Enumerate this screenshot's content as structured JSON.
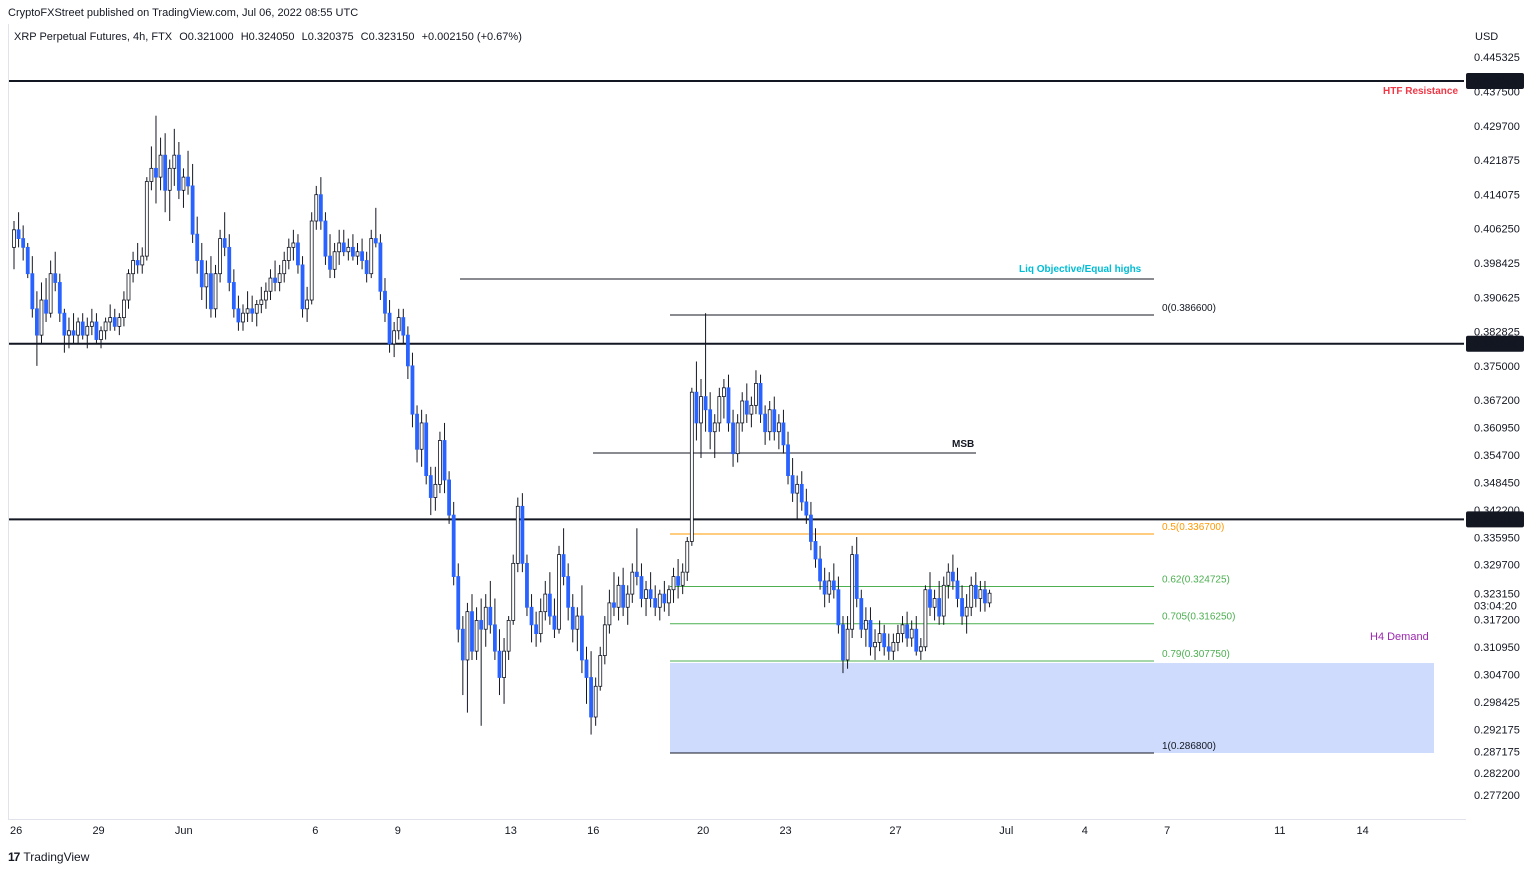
{
  "header": {
    "publisher": "CryptoFXStreet published on TradingView.com, Jul 06, 2022 08:55 UTC",
    "symbol": "XRP Perpetual Futures, 4h, FTX",
    "open": "O0.321000",
    "high": "H0.324050",
    "low": "L0.320375",
    "close": "C0.323150",
    "change": "+0.002150 (+0.67%)"
  },
  "currency": "USD",
  "footer": {
    "brand": "TradingView",
    "mark": "17"
  },
  "colors": {
    "up_candle": "#ffffff",
    "down_candle": "#2962ff",
    "candle_wick": "#131722",
    "resistance_label": "#f23645",
    "liq_label": "#00bcd4",
    "fib_05": "#ff9800",
    "fib_green": "#4caf50",
    "demand_fill": "#c5d5fb",
    "demand_label": "#9c27b0"
  },
  "chart_data": {
    "type": "candlestick",
    "title": "XRP Perpetual Futures, 4h, FTX",
    "ylabel": "USD",
    "ylim": [
      0.27,
      0.452
    ],
    "y_ticks": [
      "0.445325",
      "0.437500",
      "0.429700",
      "0.421875",
      "0.414075",
      "0.406250",
      "0.398425",
      "0.390625",
      "0.382825",
      "0.375000",
      "0.367200",
      "0.360950",
      "0.354700",
      "0.348450",
      "0.342200",
      "0.335950",
      "0.329700",
      "0.323150",
      "0.317200",
      "0.310950",
      "0.304700",
      "0.298425",
      "0.292175",
      "0.287175",
      "0.282200",
      "0.277200"
    ],
    "x_ticks": [
      {
        "label": "26",
        "bar": 0
      },
      {
        "label": "29",
        "bar": 18
      },
      {
        "label": "Jun",
        "bar": 36
      },
      {
        "label": "6",
        "bar": 66
      },
      {
        "label": "9",
        "bar": 84
      },
      {
        "label": "13",
        "bar": 108
      },
      {
        "label": "16",
        "bar": 126
      },
      {
        "label": "20",
        "bar": 150
      },
      {
        "label": "23",
        "bar": 168
      },
      {
        "label": "27",
        "bar": 192
      },
      {
        "label": "Jul",
        "bar": 216
      },
      {
        "label": "4",
        "bar": 234
      },
      {
        "label": "7",
        "bar": 252
      },
      {
        "label": "11",
        "bar": 276
      },
      {
        "label": "14",
        "bar": 294
      }
    ],
    "price_badges": [
      {
        "price": 0.4399,
        "label": "0.439900"
      },
      {
        "price": 0.38005,
        "label": "0.380050"
      },
      {
        "price": 0.340025,
        "label": "0.340025"
      }
    ],
    "horizontal_levels": [
      0.4399,
      0.38005,
      0.340025
    ],
    "annotations": {
      "htf_resistance": "HTF Resistance",
      "liq_objective": "Liq Objective/Equal highs",
      "msb": "MSB",
      "h4_demand": "H4 Demand",
      "countdown": "03:04:20",
      "last_price": "0.323150"
    },
    "fibonacci": [
      {
        "level": "0",
        "price": 0.3866,
        "label": "0(0.386600)",
        "color": "#131722"
      },
      {
        "level": "0.5",
        "price": 0.3367,
        "label": "0.5(0.336700)",
        "color": "#ff9800"
      },
      {
        "level": "0.62",
        "price": 0.324725,
        "label": "0.62(0.324725)",
        "color": "#4caf50"
      },
      {
        "level": "0.705",
        "price": 0.31625,
        "label": "0.705(0.316250)",
        "color": "#4caf50"
      },
      {
        "level": "0.79",
        "price": 0.30775,
        "label": "0.79(0.307750)",
        "color": "#4caf50"
      },
      {
        "level": "1",
        "price": 0.2868,
        "label": "1(0.286800)",
        "color": "#131722"
      }
    ],
    "demand_zone": {
      "top": 0.3073,
      "bottom": 0.2868
    },
    "ohlc": [
      [
        0.402,
        0.408,
        0.397,
        0.406
      ],
      [
        0.406,
        0.41,
        0.402,
        0.404
      ],
      [
        0.404,
        0.407,
        0.399,
        0.402
      ],
      [
        0.402,
        0.403,
        0.395,
        0.396
      ],
      [
        0.396,
        0.4,
        0.386,
        0.388
      ],
      [
        0.388,
        0.392,
        0.375,
        0.382
      ],
      [
        0.382,
        0.394,
        0.38,
        0.39
      ],
      [
        0.39,
        0.395,
        0.385,
        0.387
      ],
      [
        0.387,
        0.399,
        0.386,
        0.396
      ],
      [
        0.396,
        0.401,
        0.392,
        0.394
      ],
      [
        0.394,
        0.396,
        0.385,
        0.387
      ],
      [
        0.387,
        0.388,
        0.378,
        0.382
      ],
      [
        0.382,
        0.386,
        0.379,
        0.383
      ],
      [
        0.383,
        0.387,
        0.38,
        0.382
      ],
      [
        0.382,
        0.386,
        0.38,
        0.385
      ],
      [
        0.385,
        0.387,
        0.381,
        0.382
      ],
      [
        0.382,
        0.386,
        0.379,
        0.384
      ],
      [
        0.384,
        0.388,
        0.382,
        0.385
      ],
      [
        0.385,
        0.387,
        0.38,
        0.381
      ],
      [
        0.381,
        0.384,
        0.379,
        0.383
      ],
      [
        0.383,
        0.386,
        0.381,
        0.385
      ],
      [
        0.385,
        0.389,
        0.383,
        0.386
      ],
      [
        0.386,
        0.388,
        0.383,
        0.384
      ],
      [
        0.384,
        0.387,
        0.382,
        0.386
      ],
      [
        0.386,
        0.392,
        0.384,
        0.39
      ],
      [
        0.39,
        0.397,
        0.388,
        0.396
      ],
      [
        0.396,
        0.401,
        0.394,
        0.399
      ],
      [
        0.399,
        0.403,
        0.396,
        0.398
      ],
      [
        0.398,
        0.402,
        0.396,
        0.4
      ],
      [
        0.4,
        0.418,
        0.399,
        0.417
      ],
      [
        0.417,
        0.425,
        0.415,
        0.42
      ],
      [
        0.42,
        0.432,
        0.412,
        0.418
      ],
      [
        0.418,
        0.427,
        0.415,
        0.423
      ],
      [
        0.423,
        0.428,
        0.41,
        0.415
      ],
      [
        0.415,
        0.422,
        0.408,
        0.42
      ],
      [
        0.42,
        0.429,
        0.416,
        0.423
      ],
      [
        0.423,
        0.426,
        0.413,
        0.415
      ],
      [
        0.415,
        0.42,
        0.411,
        0.418
      ],
      [
        0.418,
        0.424,
        0.414,
        0.416
      ],
      [
        0.416,
        0.421,
        0.403,
        0.405
      ],
      [
        0.405,
        0.409,
        0.396,
        0.399
      ],
      [
        0.399,
        0.403,
        0.39,
        0.393
      ],
      [
        0.393,
        0.399,
        0.388,
        0.396
      ],
      [
        0.396,
        0.4,
        0.386,
        0.388
      ],
      [
        0.388,
        0.398,
        0.386,
        0.396
      ],
      [
        0.396,
        0.406,
        0.394,
        0.404
      ],
      [
        0.404,
        0.41,
        0.4,
        0.402
      ],
      [
        0.402,
        0.405,
        0.392,
        0.394
      ],
      [
        0.394,
        0.397,
        0.386,
        0.388
      ],
      [
        0.388,
        0.391,
        0.383,
        0.385
      ],
      [
        0.385,
        0.389,
        0.383,
        0.387
      ],
      [
        0.387,
        0.392,
        0.385,
        0.388
      ],
      [
        0.388,
        0.391,
        0.385,
        0.387
      ],
      [
        0.387,
        0.39,
        0.384,
        0.389
      ],
      [
        0.389,
        0.393,
        0.387,
        0.39
      ],
      [
        0.39,
        0.394,
        0.388,
        0.392
      ],
      [
        0.392,
        0.397,
        0.39,
        0.395
      ],
      [
        0.395,
        0.399,
        0.392,
        0.394
      ],
      [
        0.394,
        0.398,
        0.392,
        0.396
      ],
      [
        0.396,
        0.401,
        0.394,
        0.399
      ],
      [
        0.399,
        0.404,
        0.397,
        0.402
      ],
      [
        0.402,
        0.406,
        0.399,
        0.403
      ],
      [
        0.403,
        0.405,
        0.396,
        0.398
      ],
      [
        0.398,
        0.4,
        0.386,
        0.388
      ],
      [
        0.388,
        0.393,
        0.385,
        0.39
      ],
      [
        0.39,
        0.41,
        0.389,
        0.408
      ],
      [
        0.408,
        0.416,
        0.406,
        0.414
      ],
      [
        0.414,
        0.418,
        0.406,
        0.408
      ],
      [
        0.408,
        0.41,
        0.398,
        0.4
      ],
      [
        0.4,
        0.405,
        0.395,
        0.397
      ],
      [
        0.397,
        0.403,
        0.395,
        0.401
      ],
      [
        0.401,
        0.406,
        0.398,
        0.403
      ],
      [
        0.403,
        0.406,
        0.4,
        0.401
      ],
      [
        0.401,
        0.404,
        0.399,
        0.402
      ],
      [
        0.402,
        0.405,
        0.399,
        0.4
      ],
      [
        0.4,
        0.403,
        0.398,
        0.401
      ],
      [
        0.401,
        0.404,
        0.397,
        0.399
      ],
      [
        0.399,
        0.401,
        0.394,
        0.396
      ],
      [
        0.396,
        0.406,
        0.395,
        0.404
      ],
      [
        0.404,
        0.411,
        0.402,
        0.403
      ],
      [
        0.403,
        0.405,
        0.39,
        0.392
      ],
      [
        0.392,
        0.395,
        0.385,
        0.387
      ],
      [
        0.387,
        0.39,
        0.378,
        0.38
      ],
      [
        0.38,
        0.385,
        0.377,
        0.383
      ],
      [
        0.383,
        0.388,
        0.381,
        0.386
      ],
      [
        0.386,
        0.388,
        0.38,
        0.382
      ],
      [
        0.382,
        0.384,
        0.372,
        0.375
      ],
      [
        0.375,
        0.378,
        0.361,
        0.364
      ],
      [
        0.364,
        0.366,
        0.353,
        0.356
      ],
      [
        0.356,
        0.365,
        0.352,
        0.362
      ],
      [
        0.362,
        0.364,
        0.348,
        0.35
      ],
      [
        0.35,
        0.352,
        0.341,
        0.345
      ],
      [
        0.345,
        0.352,
        0.342,
        0.348
      ],
      [
        0.348,
        0.36,
        0.346,
        0.358
      ],
      [
        0.358,
        0.362,
        0.346,
        0.349
      ],
      [
        0.349,
        0.351,
        0.339,
        0.341
      ],
      [
        0.341,
        0.344,
        0.325,
        0.327
      ],
      [
        0.327,
        0.33,
        0.312,
        0.315
      ],
      [
        0.315,
        0.318,
        0.3,
        0.308
      ],
      [
        0.308,
        0.321,
        0.296,
        0.319
      ],
      [
        0.319,
        0.323,
        0.308,
        0.31
      ],
      [
        0.31,
        0.32,
        0.308,
        0.317
      ],
      [
        0.317,
        0.322,
        0.293,
        0.315
      ],
      [
        0.315,
        0.323,
        0.311,
        0.32
      ],
      [
        0.32,
        0.326,
        0.314,
        0.316
      ],
      [
        0.316,
        0.322,
        0.308,
        0.31
      ],
      [
        0.31,
        0.315,
        0.3,
        0.304
      ],
      [
        0.304,
        0.313,
        0.298,
        0.31
      ],
      [
        0.31,
        0.318,
        0.308,
        0.317
      ],
      [
        0.317,
        0.332,
        0.316,
        0.33
      ],
      [
        0.33,
        0.345,
        0.328,
        0.343
      ],
      [
        0.343,
        0.346,
        0.328,
        0.33
      ],
      [
        0.33,
        0.332,
        0.318,
        0.32
      ],
      [
        0.32,
        0.323,
        0.312,
        0.316
      ],
      [
        0.316,
        0.319,
        0.311,
        0.314
      ],
      [
        0.314,
        0.322,
        0.312,
        0.319
      ],
      [
        0.319,
        0.326,
        0.317,
        0.323
      ],
      [
        0.323,
        0.328,
        0.316,
        0.318
      ],
      [
        0.318,
        0.322,
        0.313,
        0.315
      ],
      [
        0.315,
        0.334,
        0.314,
        0.332
      ],
      [
        0.332,
        0.338,
        0.325,
        0.327
      ],
      [
        0.327,
        0.33,
        0.317,
        0.32
      ],
      [
        0.32,
        0.323,
        0.312,
        0.315
      ],
      [
        0.315,
        0.32,
        0.31,
        0.318
      ],
      [
        0.318,
        0.325,
        0.305,
        0.308
      ],
      [
        0.308,
        0.311,
        0.298,
        0.304
      ],
      [
        0.304,
        0.31,
        0.291,
        0.295
      ],
      [
        0.295,
        0.304,
        0.293,
        0.302
      ],
      [
        0.302,
        0.311,
        0.301,
        0.309
      ],
      [
        0.309,
        0.318,
        0.307,
        0.316
      ],
      [
        0.316,
        0.324,
        0.314,
        0.321
      ],
      [
        0.321,
        0.328,
        0.318,
        0.32
      ],
      [
        0.32,
        0.327,
        0.317,
        0.325
      ],
      [
        0.325,
        0.329,
        0.318,
        0.32
      ],
      [
        0.32,
        0.325,
        0.316,
        0.323
      ],
      [
        0.323,
        0.33,
        0.321,
        0.328
      ],
      [
        0.328,
        0.338,
        0.325,
        0.327
      ],
      [
        0.327,
        0.33,
        0.32,
        0.322
      ],
      [
        0.322,
        0.326,
        0.318,
        0.324
      ],
      [
        0.324,
        0.328,
        0.32,
        0.322
      ],
      [
        0.322,
        0.325,
        0.318,
        0.32
      ],
      [
        0.32,
        0.324,
        0.317,
        0.323
      ],
      [
        0.323,
        0.326,
        0.319,
        0.321
      ],
      [
        0.321,
        0.325,
        0.318,
        0.324
      ],
      [
        0.324,
        0.329,
        0.321,
        0.327
      ],
      [
        0.327,
        0.331,
        0.322,
        0.325
      ],
      [
        0.325,
        0.33,
        0.323,
        0.328
      ],
      [
        0.328,
        0.336,
        0.326,
        0.335
      ],
      [
        0.335,
        0.37,
        0.334,
        0.369
      ],
      [
        0.369,
        0.376,
        0.358,
        0.362
      ],
      [
        0.362,
        0.372,
        0.354,
        0.368
      ],
      [
        0.368,
        0.387,
        0.36,
        0.365
      ],
      [
        0.365,
        0.369,
        0.356,
        0.36
      ],
      [
        0.36,
        0.364,
        0.354,
        0.362
      ],
      [
        0.362,
        0.37,
        0.36,
        0.368
      ],
      [
        0.368,
        0.372,
        0.363,
        0.37
      ],
      [
        0.37,
        0.373,
        0.36,
        0.362
      ],
      [
        0.362,
        0.365,
        0.352,
        0.355
      ],
      [
        0.355,
        0.364,
        0.353,
        0.362
      ],
      [
        0.362,
        0.369,
        0.36,
        0.367
      ],
      [
        0.367,
        0.371,
        0.362,
        0.364
      ],
      [
        0.364,
        0.368,
        0.361,
        0.366
      ],
      [
        0.366,
        0.374,
        0.364,
        0.371
      ],
      [
        0.371,
        0.373,
        0.362,
        0.364
      ],
      [
        0.364,
        0.366,
        0.357,
        0.36
      ],
      [
        0.36,
        0.367,
        0.358,
        0.365
      ],
      [
        0.365,
        0.368,
        0.358,
        0.36
      ],
      [
        0.36,
        0.364,
        0.356,
        0.362
      ],
      [
        0.362,
        0.365,
        0.355,
        0.357
      ],
      [
        0.357,
        0.36,
        0.348,
        0.35
      ],
      [
        0.35,
        0.354,
        0.344,
        0.346
      ],
      [
        0.346,
        0.35,
        0.34,
        0.348
      ],
      [
        0.348,
        0.351,
        0.342,
        0.344
      ],
      [
        0.344,
        0.347,
        0.339,
        0.341
      ],
      [
        0.341,
        0.344,
        0.333,
        0.335
      ],
      [
        0.335,
        0.338,
        0.329,
        0.331
      ],
      [
        0.331,
        0.334,
        0.324,
        0.326
      ],
      [
        0.326,
        0.329,
        0.32,
        0.323
      ],
      [
        0.323,
        0.328,
        0.321,
        0.326
      ],
      [
        0.326,
        0.33,
        0.322,
        0.324
      ],
      [
        0.324,
        0.327,
        0.314,
        0.316
      ],
      [
        0.316,
        0.318,
        0.305,
        0.308
      ],
      [
        0.308,
        0.318,
        0.306,
        0.315
      ],
      [
        0.315,
        0.334,
        0.313,
        0.332
      ],
      [
        0.332,
        0.336,
        0.32,
        0.322
      ],
      [
        0.322,
        0.324,
        0.313,
        0.315
      ],
      [
        0.315,
        0.32,
        0.311,
        0.317
      ],
      [
        0.317,
        0.32,
        0.309,
        0.311
      ],
      [
        0.311,
        0.315,
        0.308,
        0.312
      ],
      [
        0.312,
        0.317,
        0.31,
        0.314
      ],
      [
        0.314,
        0.316,
        0.309,
        0.311
      ],
      [
        0.311,
        0.314,
        0.308,
        0.31
      ],
      [
        0.31,
        0.314,
        0.308,
        0.312
      ],
      [
        0.312,
        0.316,
        0.31,
        0.314
      ],
      [
        0.314,
        0.318,
        0.312,
        0.316
      ],
      [
        0.316,
        0.319,
        0.311,
        0.313
      ],
      [
        0.313,
        0.317,
        0.311,
        0.315
      ],
      [
        0.315,
        0.318,
        0.309,
        0.31
      ],
      [
        0.31,
        0.313,
        0.308,
        0.311
      ],
      [
        0.311,
        0.325,
        0.31,
        0.324
      ],
      [
        0.324,
        0.328,
        0.318,
        0.32
      ],
      [
        0.32,
        0.324,
        0.317,
        0.322
      ],
      [
        0.322,
        0.326,
        0.316,
        0.318
      ],
      [
        0.318,
        0.327,
        0.316,
        0.325
      ],
      [
        0.325,
        0.33,
        0.322,
        0.328
      ],
      [
        0.328,
        0.332,
        0.324,
        0.326
      ],
      [
        0.326,
        0.329,
        0.32,
        0.322
      ],
      [
        0.322,
        0.325,
        0.316,
        0.318
      ],
      [
        0.318,
        0.323,
        0.314,
        0.32
      ],
      [
        0.32,
        0.327,
        0.318,
        0.325
      ],
      [
        0.325,
        0.328,
        0.32,
        0.322
      ],
      [
        0.322,
        0.326,
        0.319,
        0.324
      ],
      [
        0.324,
        0.326,
        0.319,
        0.321
      ],
      [
        0.321,
        0.324,
        0.32,
        0.3232
      ]
    ]
  }
}
